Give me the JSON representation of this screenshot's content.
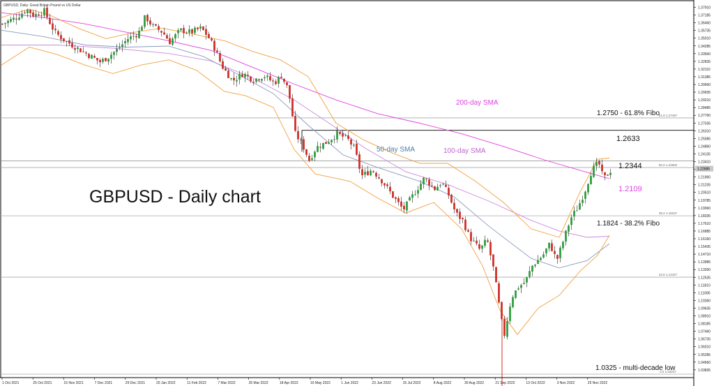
{
  "header": {
    "caption": "GBPUSD, Daily:  Great Britain Pound vs US Dollar"
  },
  "chart_data": {
    "type": "candlestick",
    "title": "GBPUSD - Daily chart",
    "ylim": [
      1.0325,
      1.38
    ],
    "x_tick_labels": [
      "1 Oct 2021",
      "25 Oct 2021",
      "15 Nov 2021",
      "7 Dec 2021",
      "29 Dec 2021",
      "20 Jan 2022",
      "11 Feb 2022",
      "7 Mar 2022",
      "25 Mar 2022",
      "18 Apr 2022",
      "10 May 2022",
      "1 Jun 2022",
      "23 Jun 2022",
      "15 Jul 2022",
      "8 Aug 2022",
      "30 Aug 2022",
      "21 Sep 2022",
      "13 Oct 2022",
      "3 Nov 2022",
      "25 Nov 2022"
    ],
    "y_tick_labels": [
      "1.37910",
      "1.37185",
      "1.36460",
      "1.35735",
      "1.35010",
      "1.34285",
      "1.33560",
      "1.32835",
      "1.32110",
      "1.31385",
      "1.30660",
      "1.29935",
      "1.29210",
      "1.28485",
      "1.27760",
      "1.27035",
      "1.26310",
      "1.25585",
      "1.24860",
      "1.24135",
      "1.23410",
      "1.22685",
      "1.21960",
      "1.21235",
      "1.20510",
      "1.19785",
      "1.19060",
      "1.18335",
      "1.17610",
      "1.16885",
      "1.16160",
      "1.15435",
      "1.14710",
      "1.13985",
      "1.13260",
      "1.12535",
      "1.11810",
      "1.11085",
      "1.10360",
      "1.09635",
      "1.08910",
      "1.08185",
      "1.07460",
      "1.06735",
      "1.06010",
      "1.05285",
      "1.04560",
      "1.03835"
    ],
    "series": [
      {
        "name": "200-day SMA",
        "color": "#e040e0",
        "points": [
          [
            0,
            1.3745
          ],
          [
            60,
            1.37
          ],
          [
            120,
            1.364
          ],
          [
            180,
            1.356
          ],
          [
            240,
            1.348
          ],
          [
            300,
            1.339
          ],
          [
            360,
            1.323
          ],
          [
            420,
            1.307
          ],
          [
            480,
            1.292
          ],
          [
            540,
            1.279
          ],
          [
            600,
            1.27
          ],
          [
            660,
            1.26
          ],
          [
            720,
            1.248
          ],
          [
            780,
            1.235
          ],
          [
            840,
            1.2235
          ],
          [
            872,
            1.2175
          ]
        ]
      },
      {
        "name": "100-day SMA",
        "color": "#cc88dd",
        "points": [
          [
            0,
            1.344
          ],
          [
            80,
            1.344
          ],
          [
            160,
            1.341
          ],
          [
            240,
            1.336
          ],
          [
            300,
            1.329
          ],
          [
            360,
            1.313
          ],
          [
            420,
            1.292
          ],
          [
            470,
            1.27
          ],
          [
            520,
            1.247
          ],
          [
            580,
            1.224
          ],
          [
            640,
            1.212
          ],
          [
            700,
            1.196
          ],
          [
            760,
            1.178
          ],
          [
            800,
            1.168
          ],
          [
            840,
            1.162
          ],
          [
            872,
            1.163
          ]
        ]
      },
      {
        "name": "50-day SMA",
        "color": "#8899bb",
        "points": [
          [
            0,
            1.358
          ],
          [
            60,
            1.352
          ],
          [
            120,
            1.344
          ],
          [
            180,
            1.342
          ],
          [
            240,
            1.343
          ],
          [
            290,
            1.333
          ],
          [
            340,
            1.316
          ],
          [
            390,
            1.298
          ],
          [
            440,
            1.268
          ],
          [
            490,
            1.24
          ],
          [
            540,
            1.228
          ],
          [
            600,
            1.215
          ],
          [
            650,
            1.2
          ],
          [
            700,
            1.172
          ],
          [
            760,
            1.142
          ],
          [
            800,
            1.133
          ],
          [
            840,
            1.14
          ],
          [
            872,
            1.156
          ]
        ]
      },
      {
        "name": "Bollinger upper",
        "color": "#f0a040",
        "points": [
          [
            0,
            1.37
          ],
          [
            40,
            1.378
          ],
          [
            70,
            1.372
          ],
          [
            110,
            1.36
          ],
          [
            150,
            1.35
          ],
          [
            190,
            1.356
          ],
          [
            230,
            1.36
          ],
          [
            270,
            1.355
          ],
          [
            320,
            1.348
          ],
          [
            360,
            1.338
          ],
          [
            400,
            1.33
          ],
          [
            440,
            1.314
          ],
          [
            480,
            1.27
          ],
          [
            520,
            1.254
          ],
          [
            560,
            1.242
          ],
          [
            600,
            1.232
          ],
          [
            640,
            1.232
          ],
          [
            680,
            1.215
          ],
          [
            720,
            1.195
          ],
          [
            760,
            1.17
          ],
          [
            800,
            1.162
          ],
          [
            830,
            1.205
          ],
          [
            855,
            1.236
          ],
          [
            872,
            1.237
          ]
        ]
      },
      {
        "name": "Bollinger lower",
        "color": "#f0a040",
        "points": [
          [
            0,
            1.325
          ],
          [
            40,
            1.342
          ],
          [
            80,
            1.335
          ],
          [
            120,
            1.325
          ],
          [
            160,
            1.317
          ],
          [
            200,
            1.325
          ],
          [
            240,
            1.33
          ],
          [
            280,
            1.32
          ],
          [
            320,
            1.3
          ],
          [
            350,
            1.296
          ],
          [
            390,
            1.285
          ],
          [
            420,
            1.245
          ],
          [
            450,
            1.222
          ],
          [
            500,
            1.215
          ],
          [
            540,
            1.199
          ],
          [
            580,
            1.185
          ],
          [
            620,
            1.195
          ],
          [
            660,
            1.17
          ],
          [
            690,
            1.135
          ],
          [
            715,
            1.093
          ],
          [
            740,
            1.07
          ],
          [
            770,
            1.095
          ],
          [
            800,
            1.107
          ],
          [
            830,
            1.13
          ],
          [
            855,
            1.145
          ],
          [
            872,
            1.164
          ]
        ]
      }
    ],
    "candles_close_path": [
      [
        0,
        1.364
      ],
      [
        20,
        1.37
      ],
      [
        35,
        1.378
      ],
      [
        45,
        1.372
      ],
      [
        60,
        1.376
      ],
      [
        75,
        1.356
      ],
      [
        90,
        1.348
      ],
      [
        105,
        1.342
      ],
      [
        120,
        1.336
      ],
      [
        140,
        1.328
      ],
      [
        150,
        1.332
      ],
      [
        165,
        1.34
      ],
      [
        180,
        1.35
      ],
      [
        195,
        1.355
      ],
      [
        205,
        1.371
      ],
      [
        215,
        1.362
      ],
      [
        230,
        1.356
      ],
      [
        240,
        1.347
      ],
      [
        255,
        1.358
      ],
      [
        270,
        1.356
      ],
      [
        285,
        1.36
      ],
      [
        295,
        1.352
      ],
      [
        305,
        1.34
      ],
      [
        315,
        1.324
      ],
      [
        330,
        1.31
      ],
      [
        345,
        1.317
      ],
      [
        360,
        1.311
      ],
      [
        375,
        1.315
      ],
      [
        390,
        1.308
      ],
      [
        400,
        1.315
      ],
      [
        410,
        1.302
      ],
      [
        420,
        1.26
      ],
      [
        430,
        1.25
      ],
      [
        440,
        1.235
      ],
      [
        450,
        1.247
      ],
      [
        465,
        1.252
      ],
      [
        480,
        1.26
      ],
      [
        495,
        1.255
      ],
      [
        505,
        1.246
      ],
      [
        515,
        1.22
      ],
      [
        530,
        1.226
      ],
      [
        545,
        1.215
      ],
      [
        560,
        1.201
      ],
      [
        575,
        1.188
      ],
      [
        590,
        1.203
      ],
      [
        605,
        1.218
      ],
      [
        620,
        1.208
      ],
      [
        630,
        1.214
      ],
      [
        640,
        1.202
      ],
      [
        650,
        1.185
      ],
      [
        660,
        1.178
      ],
      [
        670,
        1.162
      ],
      [
        685,
        1.15
      ],
      [
        695,
        1.16
      ],
      [
        705,
        1.13
      ],
      [
        715,
        1.085
      ],
      [
        720,
        1.07
      ],
      [
        730,
        1.105
      ],
      [
        740,
        1.115
      ],
      [
        750,
        1.12
      ],
      [
        760,
        1.135
      ],
      [
        775,
        1.145
      ],
      [
        785,
        1.156
      ],
      [
        795,
        1.14
      ],
      [
        805,
        1.16
      ],
      [
        815,
        1.18
      ],
      [
        825,
        1.19
      ],
      [
        835,
        1.205
      ],
      [
        845,
        1.225
      ],
      [
        855,
        1.233
      ],
      [
        862,
        1.217
      ],
      [
        872,
        1.225
      ]
    ],
    "annotations": [
      {
        "text": "200-day SMA",
        "color": "#e040e0"
      },
      {
        "text": "50-day SMA",
        "color": "#4d7aa8"
      },
      {
        "text": "100-day SMA",
        "color": "#bb66cc"
      },
      {
        "text": "1.2750 - 61.8% Fibo",
        "color": "#111111",
        "level": 1.275
      },
      {
        "text": "1.2633",
        "color": "#111111",
        "level": 1.2633
      },
      {
        "text": "1.2344",
        "color": "#111111",
        "level": 1.2344
      },
      {
        "text": "1.2109",
        "color": "#e040e0",
        "level": 1.2109
      },
      {
        "text": "1.1824 - 38.2% Fibo",
        "color": "#111111",
        "level": 1.1824
      },
      {
        "text": "1.0325 - multi-decade low",
        "color": "#111111",
        "level": 1.0325
      }
    ],
    "fibo_labels": [
      {
        "text": "61.8  1.27497",
        "level": 1.275
      },
      {
        "text": "50.0  1.22802",
        "level": 1.228
      },
      {
        "text": "38.2  1.18237",
        "level": 1.1824
      },
      {
        "text": "23.6  1.12427",
        "level": 1.1243
      },
      {
        "text": "0.0  1.03247",
        "level": 1.0325
      }
    ],
    "current_price": "1.22685",
    "grid": false,
    "legend": "none"
  }
}
